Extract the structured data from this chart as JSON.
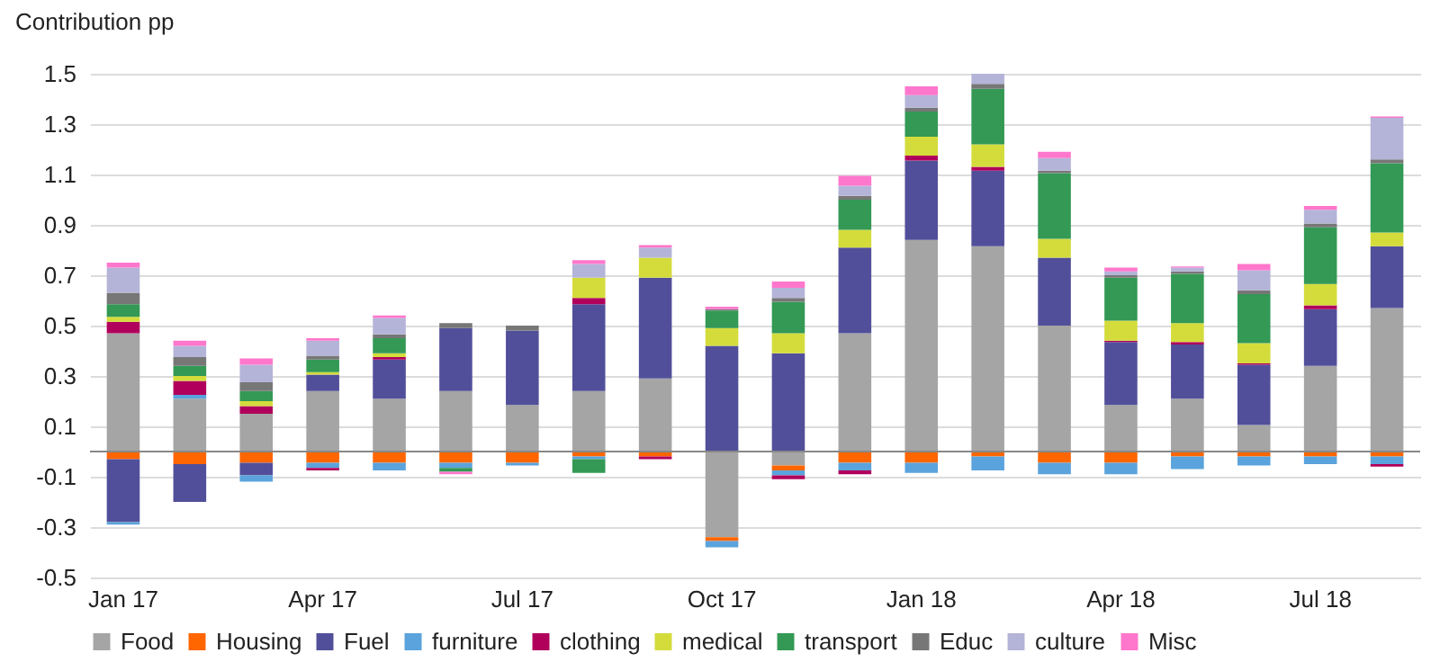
{
  "chart_data": {
    "type": "bar",
    "stacked": true,
    "ylabel": "Contribution pp",
    "categories": [
      "Jan 17",
      null,
      null,
      "Apr 17",
      null,
      null,
      "Jul 17",
      null,
      null,
      "Oct 17",
      null,
      null,
      "Jan 18",
      null,
      null,
      "Apr 18",
      null,
      null,
      "Jul 18",
      null
    ],
    "series": [
      {
        "name": "Food",
        "color": "#a5a5a5",
        "values": [
          0.47,
          0.21,
          0.15,
          0.24,
          0.21,
          0.24,
          0.185,
          0.24,
          0.29,
          -0.34,
          -0.055,
          0.47,
          0.84,
          0.815,
          0.5,
          0.185,
          0.21,
          0.105,
          0.34,
          0.57
        ]
      },
      {
        "name": "Housing",
        "color": "#ff6600",
        "values": [
          -0.03,
          -0.05,
          -0.045,
          -0.045,
          -0.045,
          -0.045,
          -0.045,
          -0.02,
          -0.02,
          -0.015,
          -0.02,
          -0.045,
          -0.045,
          -0.02,
          -0.045,
          -0.045,
          -0.02,
          -0.02,
          -0.02,
          -0.02
        ]
      },
      {
        "name": "Fuel",
        "color": "#524f9a",
        "values": [
          -0.25,
          -0.15,
          -0.05,
          0.065,
          0.155,
          0.25,
          0.295,
          0.345,
          0.4,
          0.42,
          0.39,
          0.34,
          0.315,
          0.3,
          0.27,
          0.25,
          0.215,
          0.24,
          0.225,
          0.245
        ]
      },
      {
        "name": "furniture",
        "color": "#5ba3dc",
        "values": [
          -0.01,
          0.015,
          -0.025,
          -0.02,
          -0.03,
          -0.02,
          -0.01,
          -0.01,
          0,
          -0.025,
          -0.02,
          -0.03,
          -0.04,
          -0.055,
          -0.045,
          -0.045,
          -0.05,
          -0.035,
          -0.03,
          -0.03
        ]
      },
      {
        "name": "clothing",
        "color": "#b0005c",
        "values": [
          0.045,
          0.055,
          0.03,
          -0.01,
          0.01,
          0,
          0,
          0.025,
          -0.01,
          0,
          -0.015,
          -0.015,
          0.02,
          0.015,
          0,
          0.005,
          0.01,
          0.005,
          0.015,
          -0.01
        ]
      },
      {
        "name": "medical",
        "color": "#d4dc3c",
        "values": [
          0.02,
          0.02,
          0.02,
          0.01,
          0.015,
          0,
          0,
          0.08,
          0.08,
          0.07,
          0.08,
          0.07,
          0.075,
          0.09,
          0.075,
          0.08,
          0.075,
          0.08,
          0.085,
          0.055
        ]
      },
      {
        "name": "transport",
        "color": "#339955",
        "values": [
          0.05,
          0.04,
          0.04,
          0.05,
          0.06,
          -0.015,
          0,
          -0.055,
          0,
          0.07,
          0.125,
          0.12,
          0.1,
          0.22,
          0.26,
          0.17,
          0.195,
          0.195,
          0.225,
          0.275
        ]
      },
      {
        "name": "Educ",
        "color": "#777777",
        "values": [
          0.045,
          0.035,
          0.035,
          0.015,
          0.015,
          0.02,
          0.02,
          0,
          0,
          0.005,
          0.015,
          0.015,
          0.015,
          0.02,
          0.01,
          0.01,
          0.01,
          0.015,
          0.015,
          0.015
        ]
      },
      {
        "name": "culture",
        "color": "#b4b4d8",
        "values": [
          0.1,
          0.045,
          0.07,
          0.06,
          0.065,
          0,
          0,
          0.055,
          0.04,
          0,
          0.04,
          0.04,
          0.05,
          0.04,
          0.05,
          0.015,
          0.015,
          0.08,
          0.055,
          0.165
        ]
      },
      {
        "name": "Misc",
        "color": "#ff77cc",
        "values": [
          0.02,
          0.02,
          0.025,
          0.01,
          0.01,
          -0.01,
          0,
          0.015,
          0.01,
          0.01,
          0.025,
          0.04,
          0.035,
          0,
          0.025,
          0.015,
          0.005,
          0.025,
          0.015,
          0.005
        ]
      }
    ],
    "ylim": [
      -0.5,
      1.5
    ],
    "yticks": [
      -0.5,
      -0.3,
      -0.1,
      0.1,
      0.3,
      0.5,
      0.7,
      0.9,
      1.1,
      1.3,
      1.5
    ],
    "grid": "y",
    "legend": "bottom"
  }
}
